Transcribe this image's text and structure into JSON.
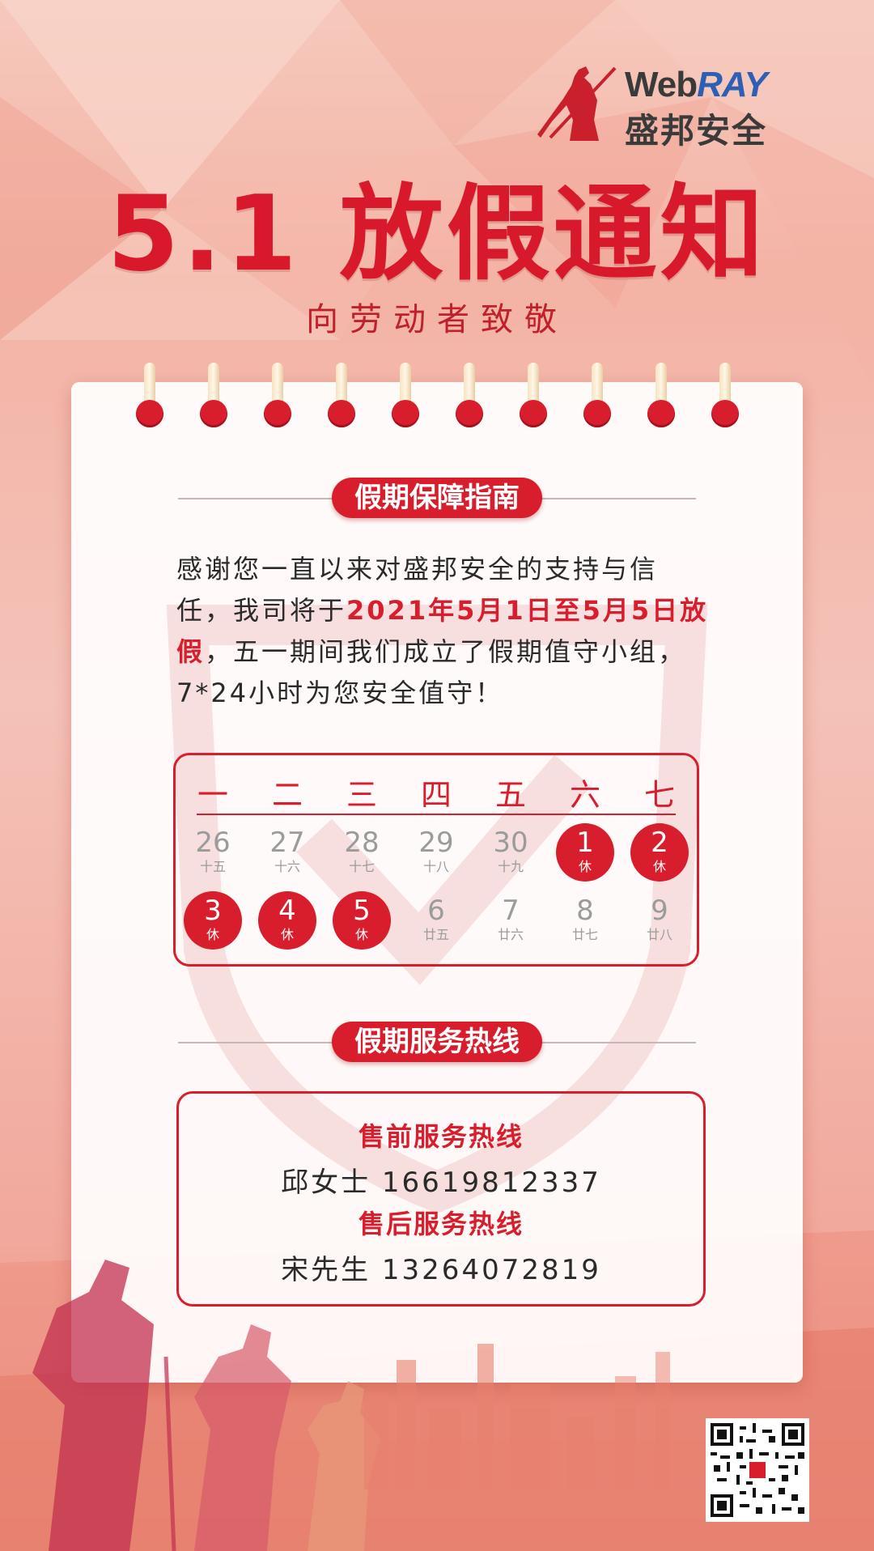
{
  "brand": {
    "logo_web": "Web",
    "logo_ray": "RAY",
    "logo_cn": "盛邦安全"
  },
  "header": {
    "title": "5.1 放假通知",
    "subtitle": "向劳动者致敬"
  },
  "section1": {
    "heading": "假期保障指南",
    "text_before": "感谢您一直以来对盛邦安全的支持与信任，我司将于",
    "text_highlight1": "2021年5月1日至5月5日",
    "text_highlight2": "放假",
    "text_after": "，五一期间我们成立了假期值守小组，7*24小时为您安全值守！"
  },
  "calendar": {
    "weekdays": [
      "一",
      "二",
      "三",
      "四",
      "五",
      "六",
      "七"
    ],
    "days": [
      {
        "n": "26",
        "l": "十五",
        "off": false
      },
      {
        "n": "27",
        "l": "十六",
        "off": false
      },
      {
        "n": "28",
        "l": "十七",
        "off": false
      },
      {
        "n": "29",
        "l": "十八",
        "off": false
      },
      {
        "n": "30",
        "l": "十九",
        "off": false
      },
      {
        "n": "1",
        "l": "休",
        "off": true
      },
      {
        "n": "2",
        "l": "休",
        "off": true
      },
      {
        "n": "3",
        "l": "休",
        "off": true
      },
      {
        "n": "4",
        "l": "休",
        "off": true
      },
      {
        "n": "5",
        "l": "休",
        "off": true
      },
      {
        "n": "6",
        "l": "廿五",
        "off": false
      },
      {
        "n": "7",
        "l": "廿六",
        "off": false
      },
      {
        "n": "8",
        "l": "廿七",
        "off": false
      },
      {
        "n": "9",
        "l": "廿八",
        "off": false
      }
    ]
  },
  "section2": {
    "heading": "假期服务热线",
    "presale_title": "售前服务热线",
    "presale_contact": "邱女士  16619812337",
    "aftersale_title": "售后服务热线",
    "aftersale_contact": "宋先生  13264072819"
  },
  "colors": {
    "accent": "#d81e2c",
    "text": "#2a2a2a",
    "muted": "#9b9b9b"
  }
}
